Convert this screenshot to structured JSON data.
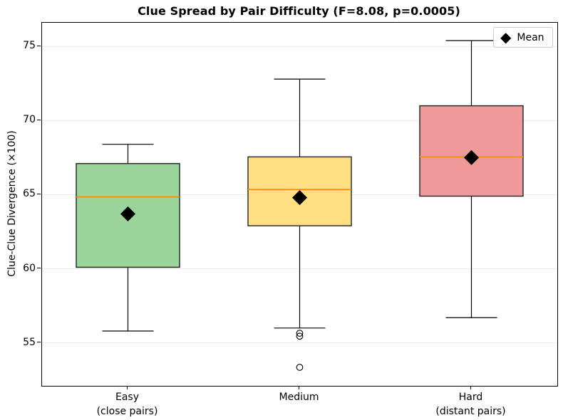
{
  "chart_data": {
    "type": "box",
    "title": "Clue Spread by Pair Difficulty (F=8.08, p=0.0005)",
    "ylabel": "Clue-Clue Divergence (×100)",
    "xlabel": "",
    "ylim": [
      52.1,
      76.6
    ],
    "yticks": [
      55,
      60,
      65,
      70,
      75
    ],
    "grid": "horizontal",
    "legend": {
      "label": "Mean",
      "marker": "black-diamond",
      "position": "upper-right"
    },
    "colors": {
      "easy_fill": "#9bd49b",
      "medium_fill": "#ffdf82",
      "hard_fill": "#ee9a9a",
      "box_edge": "#222222",
      "median_line": "#ff8c00",
      "whisker": "#000000",
      "mean_marker": "#000000",
      "gridline": "#e9e9e9",
      "background": "#ffffff"
    },
    "groups": [
      {
        "label_lines": [
          "Easy",
          "(close pairs)"
        ],
        "fill": "#9bd49b",
        "whisker_low": 55.8,
        "q1": 60.1,
        "median": 64.85,
        "q3": 67.1,
        "whisker_high": 68.4,
        "mean": 63.7,
        "outliers": []
      },
      {
        "label_lines": [
          "Medium"
        ],
        "fill": "#ffdf82",
        "whisker_low": 56.0,
        "q1": 62.9,
        "median": 65.35,
        "q3": 67.55,
        "whisker_high": 72.8,
        "mean": 64.8,
        "outliers": [
          55.65,
          55.45,
          53.35
        ]
      },
      {
        "label_lines": [
          "Hard",
          "(distant pairs)"
        ],
        "fill": "#ee9a9a",
        "whisker_low": 56.7,
        "q1": 64.9,
        "median": 67.55,
        "q3": 71.0,
        "whisker_high": 75.4,
        "mean": 67.5,
        "outliers": []
      }
    ]
  }
}
